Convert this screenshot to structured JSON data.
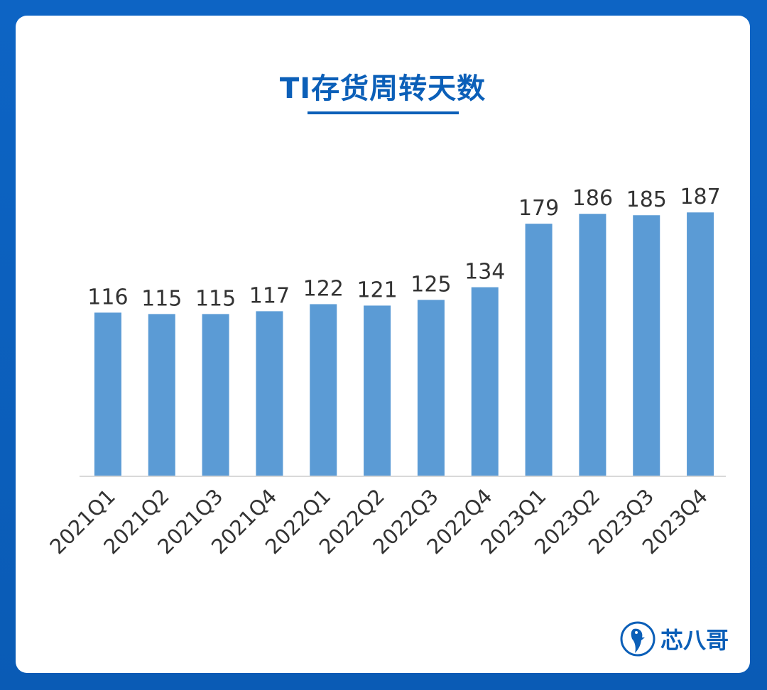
{
  "brand": {
    "name": "芯八哥"
  },
  "chart_data": {
    "type": "bar",
    "title": "TI存货周转天数",
    "categories": [
      "2021Q1",
      "2021Q2",
      "2021Q3",
      "2021Q4",
      "2022Q1",
      "2022Q2",
      "2022Q3",
      "2022Q4",
      "2023Q1",
      "2023Q2",
      "2023Q3",
      "2023Q4"
    ],
    "values": [
      116,
      115,
      115,
      117,
      122,
      121,
      125,
      134,
      179,
      186,
      185,
      187
    ],
    "xlabel": "",
    "ylabel": "",
    "ylim": [
      0,
      200
    ],
    "grid": false,
    "legend": "none",
    "bar_color": "#5b9bd5",
    "label_color": "#333333"
  }
}
